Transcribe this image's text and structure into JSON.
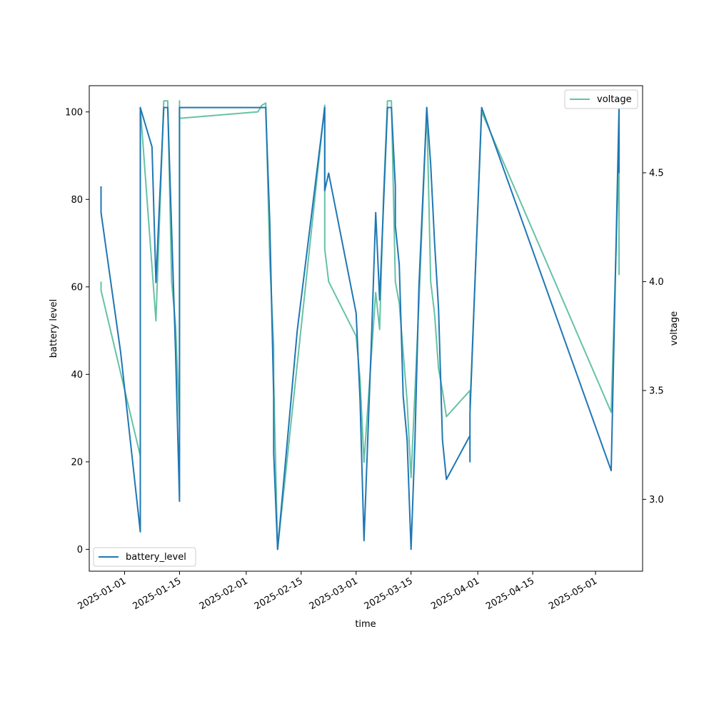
{
  "chart_data": {
    "type": "line",
    "xlabel": "time",
    "ylabel_left": "battery level",
    "ylabel_right": "voltage",
    "xlim": [
      "2024-12-23",
      "2025-05-13"
    ],
    "ylim_left": [
      -5,
      106
    ],
    "ylim_right": [
      2.67,
      4.9
    ],
    "x_ticks": [
      "2025-01-01",
      "2025-01-15",
      "2025-02-01",
      "2025-02-15",
      "2025-03-01",
      "2025-03-15",
      "2025-04-01",
      "2025-04-15",
      "2025-05-01"
    ],
    "y_ticks_left": [
      0,
      20,
      40,
      60,
      80,
      100
    ],
    "y_ticks_right": [
      3.0,
      3.5,
      4.0,
      4.5
    ],
    "legend_left": "bottom-left",
    "legend_right": "top-right",
    "grid": false,
    "series": [
      {
        "name": "battery_level",
        "axis": "left",
        "color": "#1f77b4",
        "points": [
          [
            "2024-12-26",
            83
          ],
          [
            "2024-12-26",
            77
          ],
          [
            "2024-12-31",
            45
          ],
          [
            "2025-01-05",
            4
          ],
          [
            "2025-01-05",
            101
          ],
          [
            "2025-01-08",
            92
          ],
          [
            "2025-01-09",
            61
          ],
          [
            "2025-01-11",
            101
          ],
          [
            "2025-01-12",
            101
          ],
          [
            "2025-01-14",
            45
          ],
          [
            "2025-01-15",
            11
          ],
          [
            "2025-01-15",
            27
          ],
          [
            "2025-01-15",
            101
          ],
          [
            "2025-02-06",
            101
          ],
          [
            "2025-02-06",
            100
          ],
          [
            "2025-02-07",
            75
          ],
          [
            "2025-02-08",
            35
          ],
          [
            "2025-02-08",
            22
          ],
          [
            "2025-02-09",
            0
          ],
          [
            "2025-02-14",
            50
          ],
          [
            "2025-02-21",
            101
          ],
          [
            "2025-02-21",
            82
          ],
          [
            "2025-02-22",
            86
          ],
          [
            "2025-03-01",
            54
          ],
          [
            "2025-03-02",
            34
          ],
          [
            "2025-03-03",
            2
          ],
          [
            "2025-03-05",
            50
          ],
          [
            "2025-03-06",
            77
          ],
          [
            "2025-03-07",
            57
          ],
          [
            "2025-03-09",
            101
          ],
          [
            "2025-03-10",
            101
          ],
          [
            "2025-03-11",
            83
          ],
          [
            "2025-03-11",
            74
          ],
          [
            "2025-03-12",
            65
          ],
          [
            "2025-03-13",
            35
          ],
          [
            "2025-03-14",
            25
          ],
          [
            "2025-03-15",
            0
          ],
          [
            "2025-03-16",
            25
          ],
          [
            "2025-03-17",
            60
          ],
          [
            "2025-03-19",
            101
          ],
          [
            "2025-03-20",
            88
          ],
          [
            "2025-03-21",
            70
          ],
          [
            "2025-03-22",
            55
          ],
          [
            "2025-03-23",
            25
          ],
          [
            "2025-03-24",
            16
          ],
          [
            "2025-03-30",
            26
          ],
          [
            "2025-03-30",
            20
          ],
          [
            "2025-03-30",
            31
          ],
          [
            "2025-04-02",
            101
          ],
          [
            "2025-05-05",
            18
          ],
          [
            "2025-05-07",
            101
          ],
          [
            "2025-05-07",
            86
          ]
        ]
      },
      {
        "name": "voltage",
        "axis": "right",
        "color": "#66c2a5",
        "points": [
          [
            "2024-12-26",
            4.0
          ],
          [
            "2024-12-26",
            3.96
          ],
          [
            "2025-01-05",
            3.2
          ],
          [
            "2025-01-05",
            4.8
          ],
          [
            "2025-01-09",
            3.82
          ],
          [
            "2025-01-11",
            4.83
          ],
          [
            "2025-01-12",
            4.83
          ],
          [
            "2025-01-13",
            4.0
          ],
          [
            "2025-01-14",
            3.8
          ],
          [
            "2025-01-15",
            3.35
          ],
          [
            "2025-01-15",
            4.83
          ],
          [
            "2025-01-15",
            4.75
          ],
          [
            "2025-02-04",
            4.78
          ],
          [
            "2025-02-05",
            4.81
          ],
          [
            "2025-02-06",
            4.82
          ],
          [
            "2025-02-06",
            4.81
          ],
          [
            "2025-02-07",
            4.1
          ],
          [
            "2025-02-08",
            3.7
          ],
          [
            "2025-02-08",
            3.55
          ],
          [
            "2025-02-09",
            2.77
          ],
          [
            "2025-02-21",
            4.81
          ],
          [
            "2025-02-21",
            4.15
          ],
          [
            "2025-02-22",
            4.0
          ],
          [
            "2025-03-01",
            3.75
          ],
          [
            "2025-03-02",
            3.55
          ],
          [
            "2025-03-03",
            3.17
          ],
          [
            "2025-03-06",
            3.95
          ],
          [
            "2025-03-07",
            3.78
          ],
          [
            "2025-03-08",
            4.4
          ],
          [
            "2025-03-09",
            4.83
          ],
          [
            "2025-03-10",
            4.83
          ],
          [
            "2025-03-11",
            4.0
          ],
          [
            "2025-03-12",
            3.9
          ],
          [
            "2025-03-14",
            3.45
          ],
          [
            "2025-03-15",
            3.1
          ],
          [
            "2025-03-17",
            3.9
          ],
          [
            "2025-03-19",
            4.8
          ],
          [
            "2025-03-20",
            4.0
          ],
          [
            "2025-03-21",
            3.85
          ],
          [
            "2025-03-22",
            3.6
          ],
          [
            "2025-03-23",
            3.5
          ],
          [
            "2025-03-24",
            3.38
          ],
          [
            "2025-03-30",
            3.5
          ],
          [
            "2025-03-30",
            3.42
          ],
          [
            "2025-04-02",
            4.78
          ],
          [
            "2025-05-05",
            3.4
          ],
          [
            "2025-05-07",
            4.6
          ],
          [
            "2025-05-07",
            4.03
          ]
        ]
      }
    ]
  }
}
